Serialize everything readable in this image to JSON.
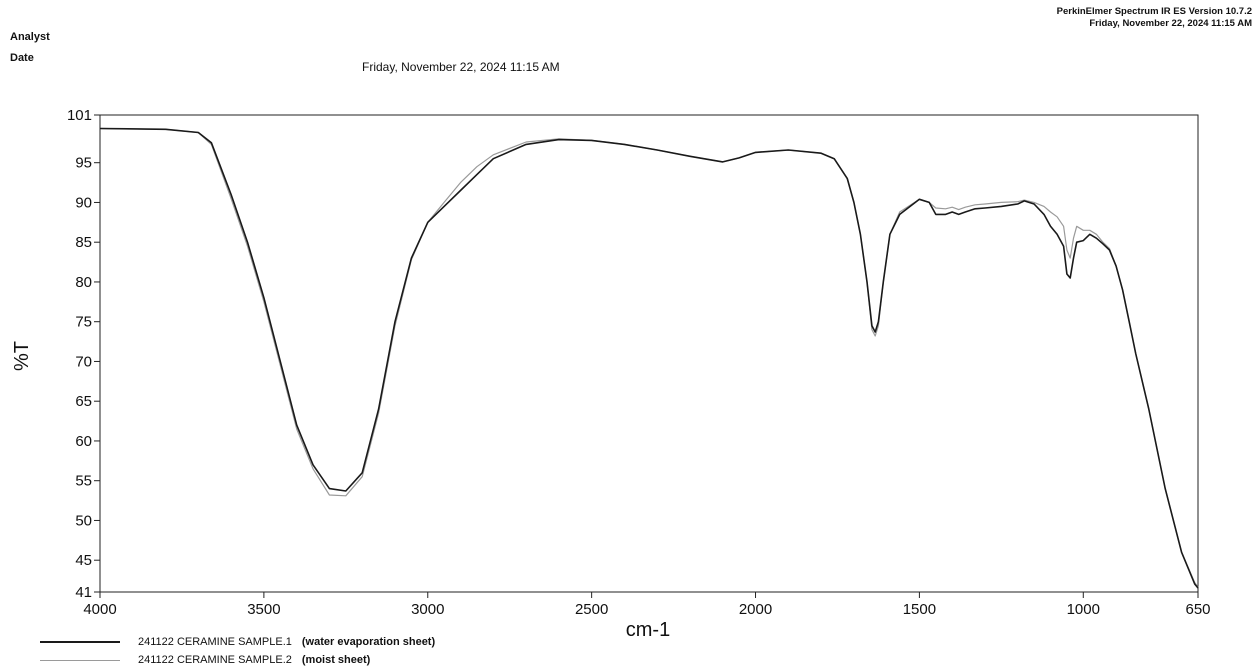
{
  "header": {
    "analyst_label": "Analyst",
    "date_label": "Date",
    "date_value": "Friday, November 22, 2024 11:15 AM",
    "software": "PerkinElmer Spectrum IR ES Version 10.7.2",
    "software_date": "Friday, November 22, 2024 11:15 AM"
  },
  "chart_data": {
    "type": "line",
    "xlabel": "cm-1",
    "ylabel": "%T",
    "xlim": [
      4000,
      650
    ],
    "ylim": [
      41,
      101
    ],
    "x_reversed": true,
    "x_ticks": [
      "4000",
      "3500",
      "3000",
      "2500",
      "2000",
      "1500",
      "1000",
      "650"
    ],
    "y_ticks": [
      "41",
      "45",
      "50",
      "55",
      "60",
      "65",
      "70",
      "75",
      "80",
      "85",
      "90",
      "95",
      "101"
    ],
    "grid": false,
    "legend_position": "bottom-left",
    "series": [
      {
        "name": "241122 CERAMINE SAMPLE.1",
        "note": "(water evaporation sheet)",
        "color": "#1a1a1a",
        "points": [
          [
            4000,
            99.3
          ],
          [
            3800,
            99.2
          ],
          [
            3700,
            98.8
          ],
          [
            3660,
            97.5
          ],
          [
            3600,
            91
          ],
          [
            3550,
            85
          ],
          [
            3500,
            78
          ],
          [
            3450,
            70
          ],
          [
            3400,
            62
          ],
          [
            3350,
            57
          ],
          [
            3300,
            54
          ],
          [
            3250,
            53.7
          ],
          [
            3200,
            56
          ],
          [
            3150,
            64
          ],
          [
            3100,
            75
          ],
          [
            3050,
            83
          ],
          [
            3000,
            87.5
          ],
          [
            2950,
            89.5
          ],
          [
            2900,
            91.5
          ],
          [
            2850,
            93.5
          ],
          [
            2800,
            95.5
          ],
          [
            2700,
            97.3
          ],
          [
            2600,
            97.9
          ],
          [
            2500,
            97.8
          ],
          [
            2400,
            97.3
          ],
          [
            2300,
            96.6
          ],
          [
            2200,
            95.8
          ],
          [
            2100,
            95.1
          ],
          [
            2050,
            95.6
          ],
          [
            2000,
            96.3
          ],
          [
            1900,
            96.6
          ],
          [
            1800,
            96.2
          ],
          [
            1760,
            95.5
          ],
          [
            1720,
            93
          ],
          [
            1700,
            90
          ],
          [
            1680,
            86
          ],
          [
            1660,
            80
          ],
          [
            1645,
            74.5
          ],
          [
            1635,
            73.7
          ],
          [
            1625,
            75
          ],
          [
            1610,
            80
          ],
          [
            1590,
            86
          ],
          [
            1560,
            88.5
          ],
          [
            1500,
            90.4
          ],
          [
            1470,
            90
          ],
          [
            1450,
            88.5
          ],
          [
            1420,
            88.5
          ],
          [
            1400,
            88.8
          ],
          [
            1380,
            88.5
          ],
          [
            1360,
            88.8
          ],
          [
            1330,
            89.2
          ],
          [
            1300,
            89.3
          ],
          [
            1250,
            89.5
          ],
          [
            1200,
            89.8
          ],
          [
            1180,
            90.2
          ],
          [
            1150,
            89.8
          ],
          [
            1120,
            88.5
          ],
          [
            1100,
            87
          ],
          [
            1080,
            86
          ],
          [
            1060,
            84.5
          ],
          [
            1050,
            81
          ],
          [
            1040,
            80.5
          ],
          [
            1030,
            83
          ],
          [
            1020,
            85
          ],
          [
            1000,
            85.2
          ],
          [
            980,
            86
          ],
          [
            960,
            85.5
          ],
          [
            940,
            84.8
          ],
          [
            920,
            84
          ],
          [
            900,
            82
          ],
          [
            880,
            79
          ],
          [
            860,
            75
          ],
          [
            840,
            71
          ],
          [
            800,
            64
          ],
          [
            750,
            54
          ],
          [
            700,
            46
          ],
          [
            660,
            42
          ],
          [
            650,
            41.5
          ]
        ]
      },
      {
        "name": "241122 CERAMINE SAMPLE.2",
        "note": "(moist sheet)",
        "color": "#9a9a9a",
        "points": [
          [
            4000,
            99.3
          ],
          [
            3800,
            99.2
          ],
          [
            3700,
            98.8
          ],
          [
            3660,
            97.3
          ],
          [
            3600,
            90.5
          ],
          [
            3550,
            84.5
          ],
          [
            3500,
            77.5
          ],
          [
            3450,
            69.5
          ],
          [
            3400,
            61.5
          ],
          [
            3350,
            56.5
          ],
          [
            3300,
            53.2
          ],
          [
            3250,
            53.1
          ],
          [
            3200,
            55.5
          ],
          [
            3150,
            63.5
          ],
          [
            3100,
            74.5
          ],
          [
            3050,
            82.8
          ],
          [
            3000,
            87.5
          ],
          [
            2950,
            90
          ],
          [
            2900,
            92.5
          ],
          [
            2850,
            94.5
          ],
          [
            2800,
            96
          ],
          [
            2700,
            97.6
          ],
          [
            2600,
            98
          ],
          [
            2500,
            97.8
          ],
          [
            2400,
            97.3
          ],
          [
            2300,
            96.6
          ],
          [
            2200,
            95.8
          ],
          [
            2100,
            95.1
          ],
          [
            2050,
            95.6
          ],
          [
            2000,
            96.3
          ],
          [
            1900,
            96.6
          ],
          [
            1800,
            96.2
          ],
          [
            1760,
            95.5
          ],
          [
            1720,
            93
          ],
          [
            1700,
            90
          ],
          [
            1680,
            86
          ],
          [
            1660,
            80
          ],
          [
            1645,
            74
          ],
          [
            1635,
            73.2
          ],
          [
            1625,
            74.5
          ],
          [
            1610,
            80
          ],
          [
            1590,
            86
          ],
          [
            1560,
            88.8
          ],
          [
            1500,
            90.4
          ],
          [
            1470,
            90
          ],
          [
            1450,
            89.3
          ],
          [
            1420,
            89.2
          ],
          [
            1400,
            89.4
          ],
          [
            1380,
            89.1
          ],
          [
            1360,
            89.4
          ],
          [
            1330,
            89.7
          ],
          [
            1300,
            89.8
          ],
          [
            1250,
            90
          ],
          [
            1200,
            90.1
          ],
          [
            1180,
            90.3
          ],
          [
            1150,
            90
          ],
          [
            1120,
            89.5
          ],
          [
            1100,
            88.8
          ],
          [
            1080,
            88.2
          ],
          [
            1060,
            87
          ],
          [
            1050,
            84
          ],
          [
            1040,
            83
          ],
          [
            1030,
            85.5
          ],
          [
            1020,
            87
          ],
          [
            1000,
            86.5
          ],
          [
            980,
            86.5
          ],
          [
            960,
            86
          ],
          [
            940,
            85
          ],
          [
            920,
            84.2
          ],
          [
            900,
            82
          ],
          [
            880,
            79
          ],
          [
            860,
            75
          ],
          [
            840,
            71
          ],
          [
            800,
            64
          ],
          [
            750,
            54
          ],
          [
            700,
            46
          ],
          [
            660,
            42.2
          ],
          [
            650,
            41.6
          ]
        ]
      }
    ]
  }
}
